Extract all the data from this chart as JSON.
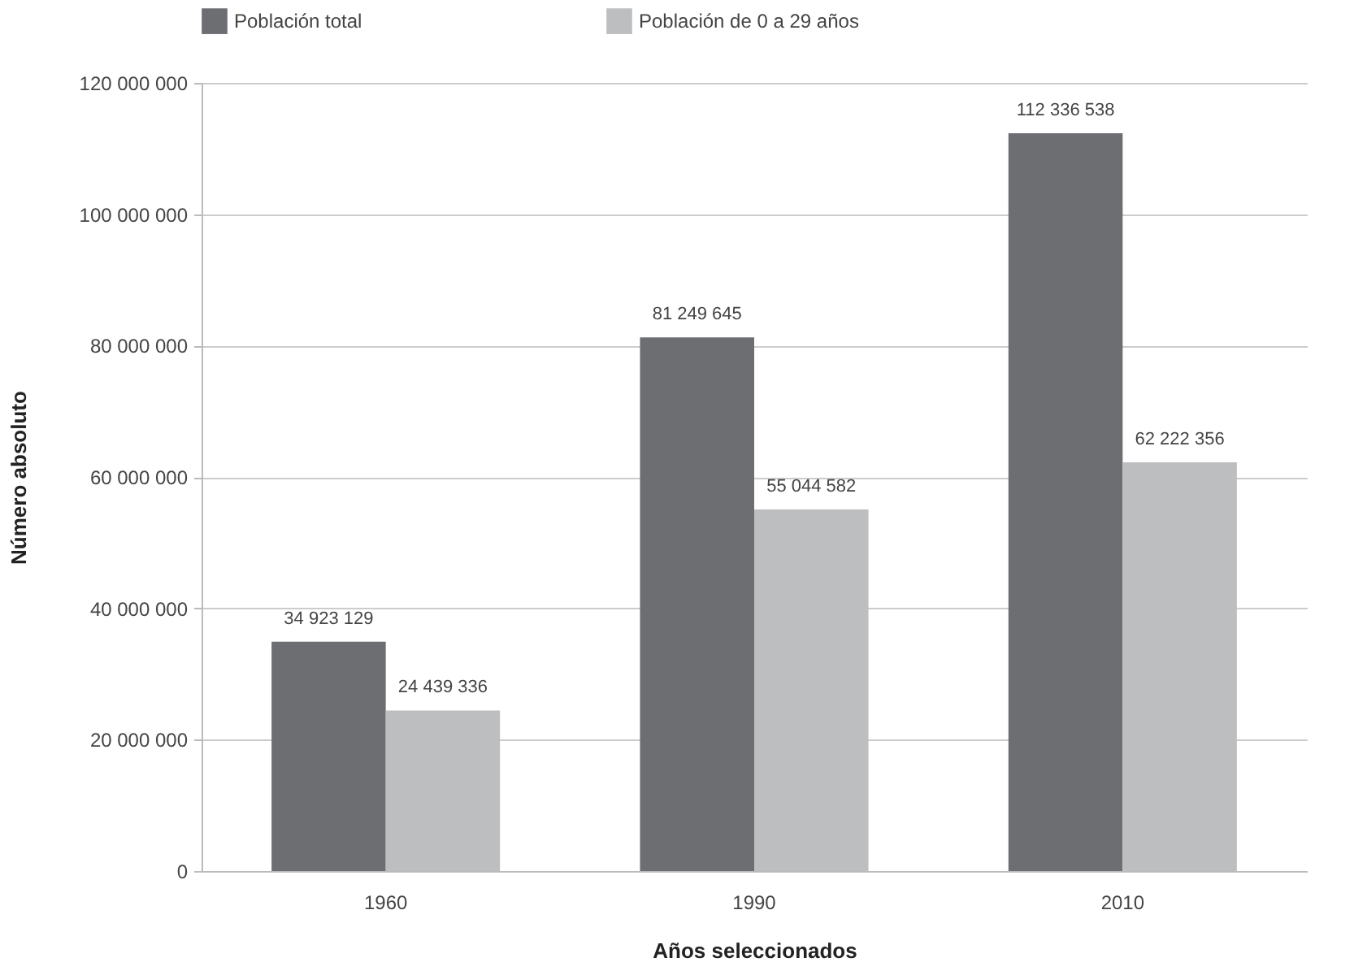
{
  "chart_data": {
    "type": "bar",
    "xlabel": "Años seleccionados",
    "ylabel": "Número absoluto",
    "categories": [
      "1960",
      "1990",
      "2010"
    ],
    "series": [
      {
        "name": "Población total",
        "color": "#6d6e71",
        "values": [
          34923129,
          81249645,
          112336538
        ],
        "value_labels": [
          "34 923 129",
          "81 249 645",
          "112 336 538"
        ]
      },
      {
        "name": "Población de 0 a 29 años",
        "color": "#bcbec0",
        "values": [
          24439336,
          55044582,
          62222356
        ],
        "value_labels": [
          "24 439 336",
          "55 044 582",
          "62 222 356"
        ]
      }
    ],
    "ylim": [
      0,
      120000000
    ],
    "yticks": [
      0,
      {
        "value": 20000000,
        "label": "20 000 000"
      },
      {
        "value": 40000000,
        "label": "40 000 000"
      },
      {
        "value": 60000000,
        "label": "60 000 000"
      },
      {
        "value": 80000000,
        "label": "80 000 000"
      },
      {
        "value": 100000000,
        "label": "100 000 000"
      },
      {
        "value": 120000000,
        "label": "120 000 000"
      }
    ],
    "grid": "y",
    "legend": "top"
  }
}
